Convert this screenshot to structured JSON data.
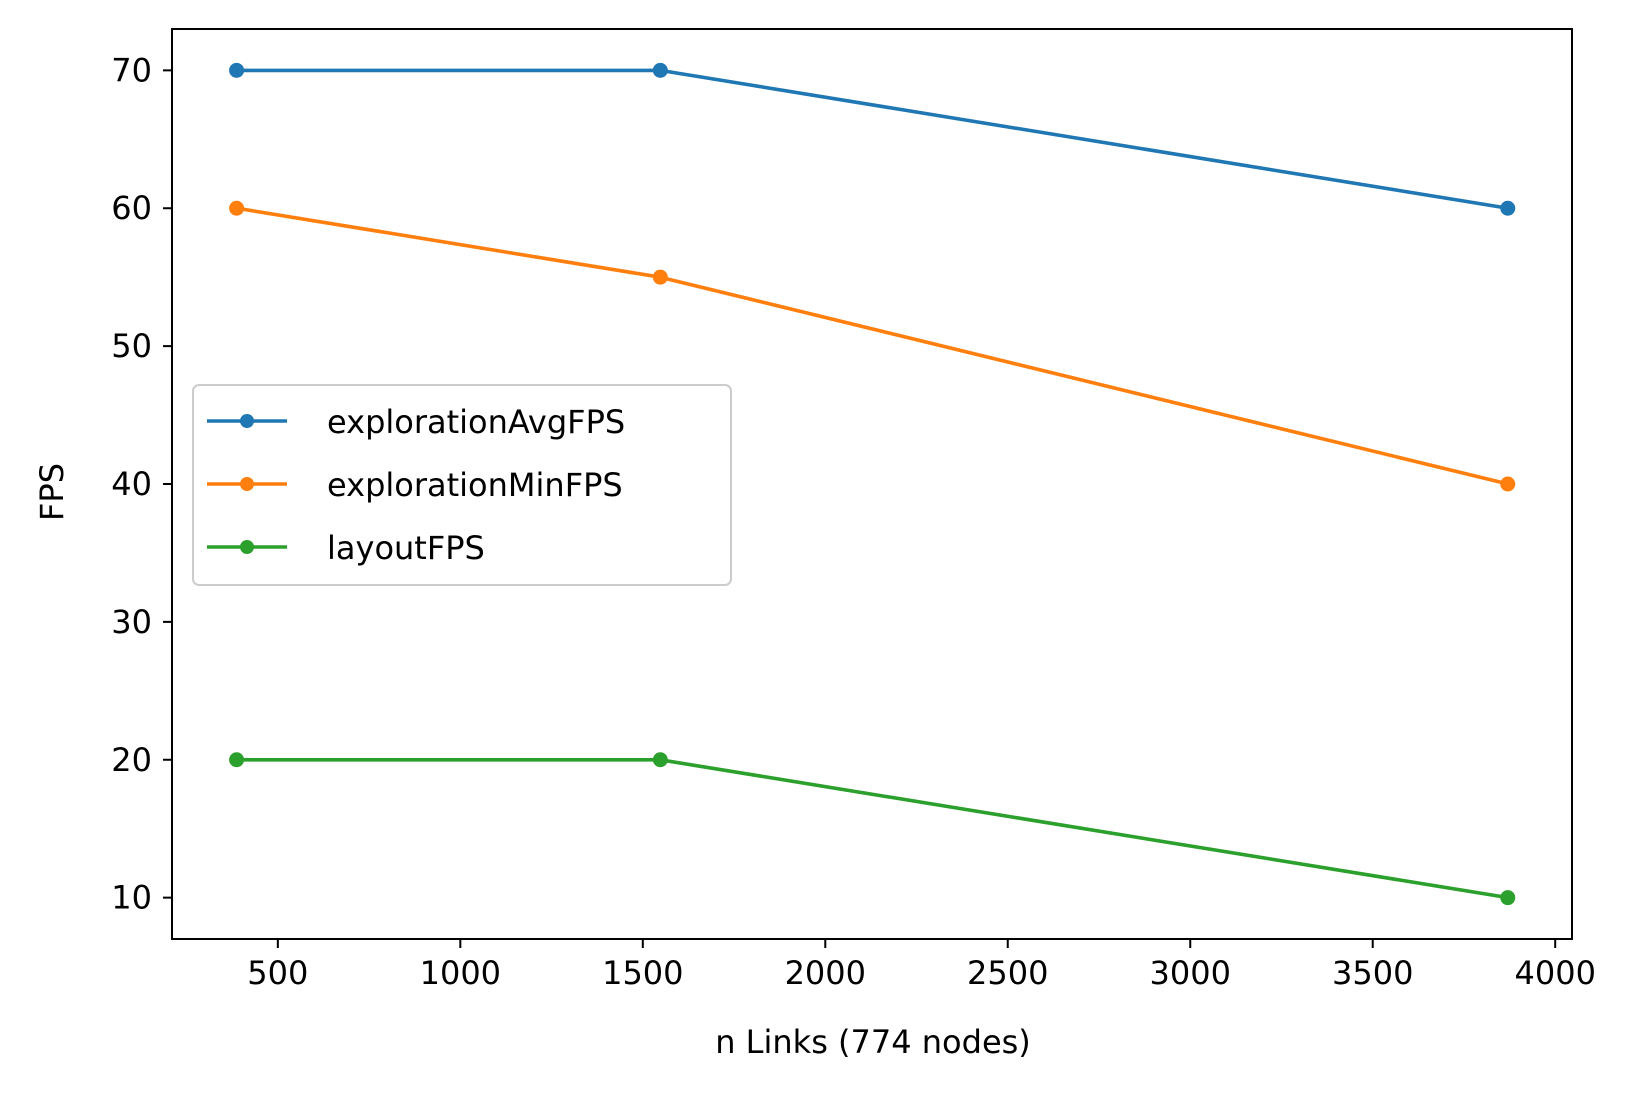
{
  "chart_data": {
    "type": "line",
    "title": "",
    "xlabel": "n Links (774 nodes)",
    "ylabel": "FPS",
    "x": [
      387,
      1548,
      3870
    ],
    "series": [
      {
        "name": "explorationAvgFPS",
        "color": "#1f77b4",
        "values": [
          70,
          70,
          60
        ]
      },
      {
        "name": "explorationMinFPS",
        "color": "#ff7f0e",
        "values": [
          60,
          55,
          40
        ]
      },
      {
        "name": "layoutFPS",
        "color": "#2ca02c",
        "values": [
          20,
          20,
          10
        ]
      }
    ],
    "xlim": [
      210,
      4046
    ],
    "ylim": [
      7,
      73
    ],
    "xticks": [
      500,
      1000,
      1500,
      2000,
      2500,
      3000,
      3500,
      4000
    ],
    "xtick_labels": [
      "500",
      "1000",
      "1500",
      "2000",
      "2500",
      "3000",
      "3500",
      "4000"
    ],
    "yticks": [
      10,
      20,
      30,
      40,
      50,
      60,
      70
    ],
    "ytick_labels": [
      "10",
      "20",
      "30",
      "40",
      "50",
      "60",
      "70"
    ],
    "grid": false,
    "legend_position": "center-left"
  }
}
